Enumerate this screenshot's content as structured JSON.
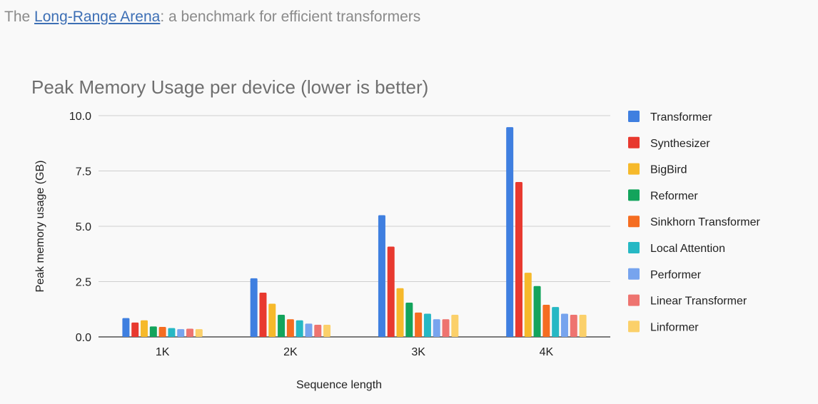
{
  "caption": {
    "prefix": "The ",
    "link_text": "Long-Range Arena",
    "suffix": ": a benchmark for efficient transformers"
  },
  "chart_data": {
    "type": "bar",
    "title": "Peak Memory Usage per device (lower is better)",
    "xlabel": "Sequence length",
    "ylabel": "Peak memory usage (GB)",
    "ylim": [
      0,
      10
    ],
    "yticks": [
      "0.0",
      "2.5",
      "5.0",
      "7.5",
      "10.0"
    ],
    "grid": true,
    "legend_position": "right",
    "categories": [
      "1K",
      "2K",
      "3K",
      "4K"
    ],
    "series": [
      {
        "name": "Transformer",
        "color": "#3f7fe0",
        "values": [
          0.85,
          2.65,
          5.5,
          9.48
        ]
      },
      {
        "name": "Synthesizer",
        "color": "#e8392f",
        "values": [
          0.65,
          2.0,
          4.08,
          7.0
        ]
      },
      {
        "name": "BigBird",
        "color": "#f6b92b",
        "values": [
          0.75,
          1.5,
          2.2,
          2.9
        ]
      },
      {
        "name": "Reformer",
        "color": "#13a45c",
        "values": [
          0.47,
          1.0,
          1.55,
          2.3
        ]
      },
      {
        "name": "Sinkhorn Transformer",
        "color": "#f56d21",
        "values": [
          0.45,
          0.8,
          1.1,
          1.45
        ]
      },
      {
        "name": "Local Attention",
        "color": "#26b8c4",
        "values": [
          0.4,
          0.75,
          1.05,
          1.35
        ]
      },
      {
        "name": "Performer",
        "color": "#77a4ee",
        "values": [
          0.35,
          0.6,
          0.8,
          1.05
        ]
      },
      {
        "name": "Linear Transformer",
        "color": "#ee7470",
        "values": [
          0.37,
          0.55,
          0.8,
          1.0
        ]
      },
      {
        "name": "Linformer",
        "color": "#fbd06a",
        "values": [
          0.35,
          0.55,
          1.0,
          1.0
        ]
      }
    ]
  }
}
